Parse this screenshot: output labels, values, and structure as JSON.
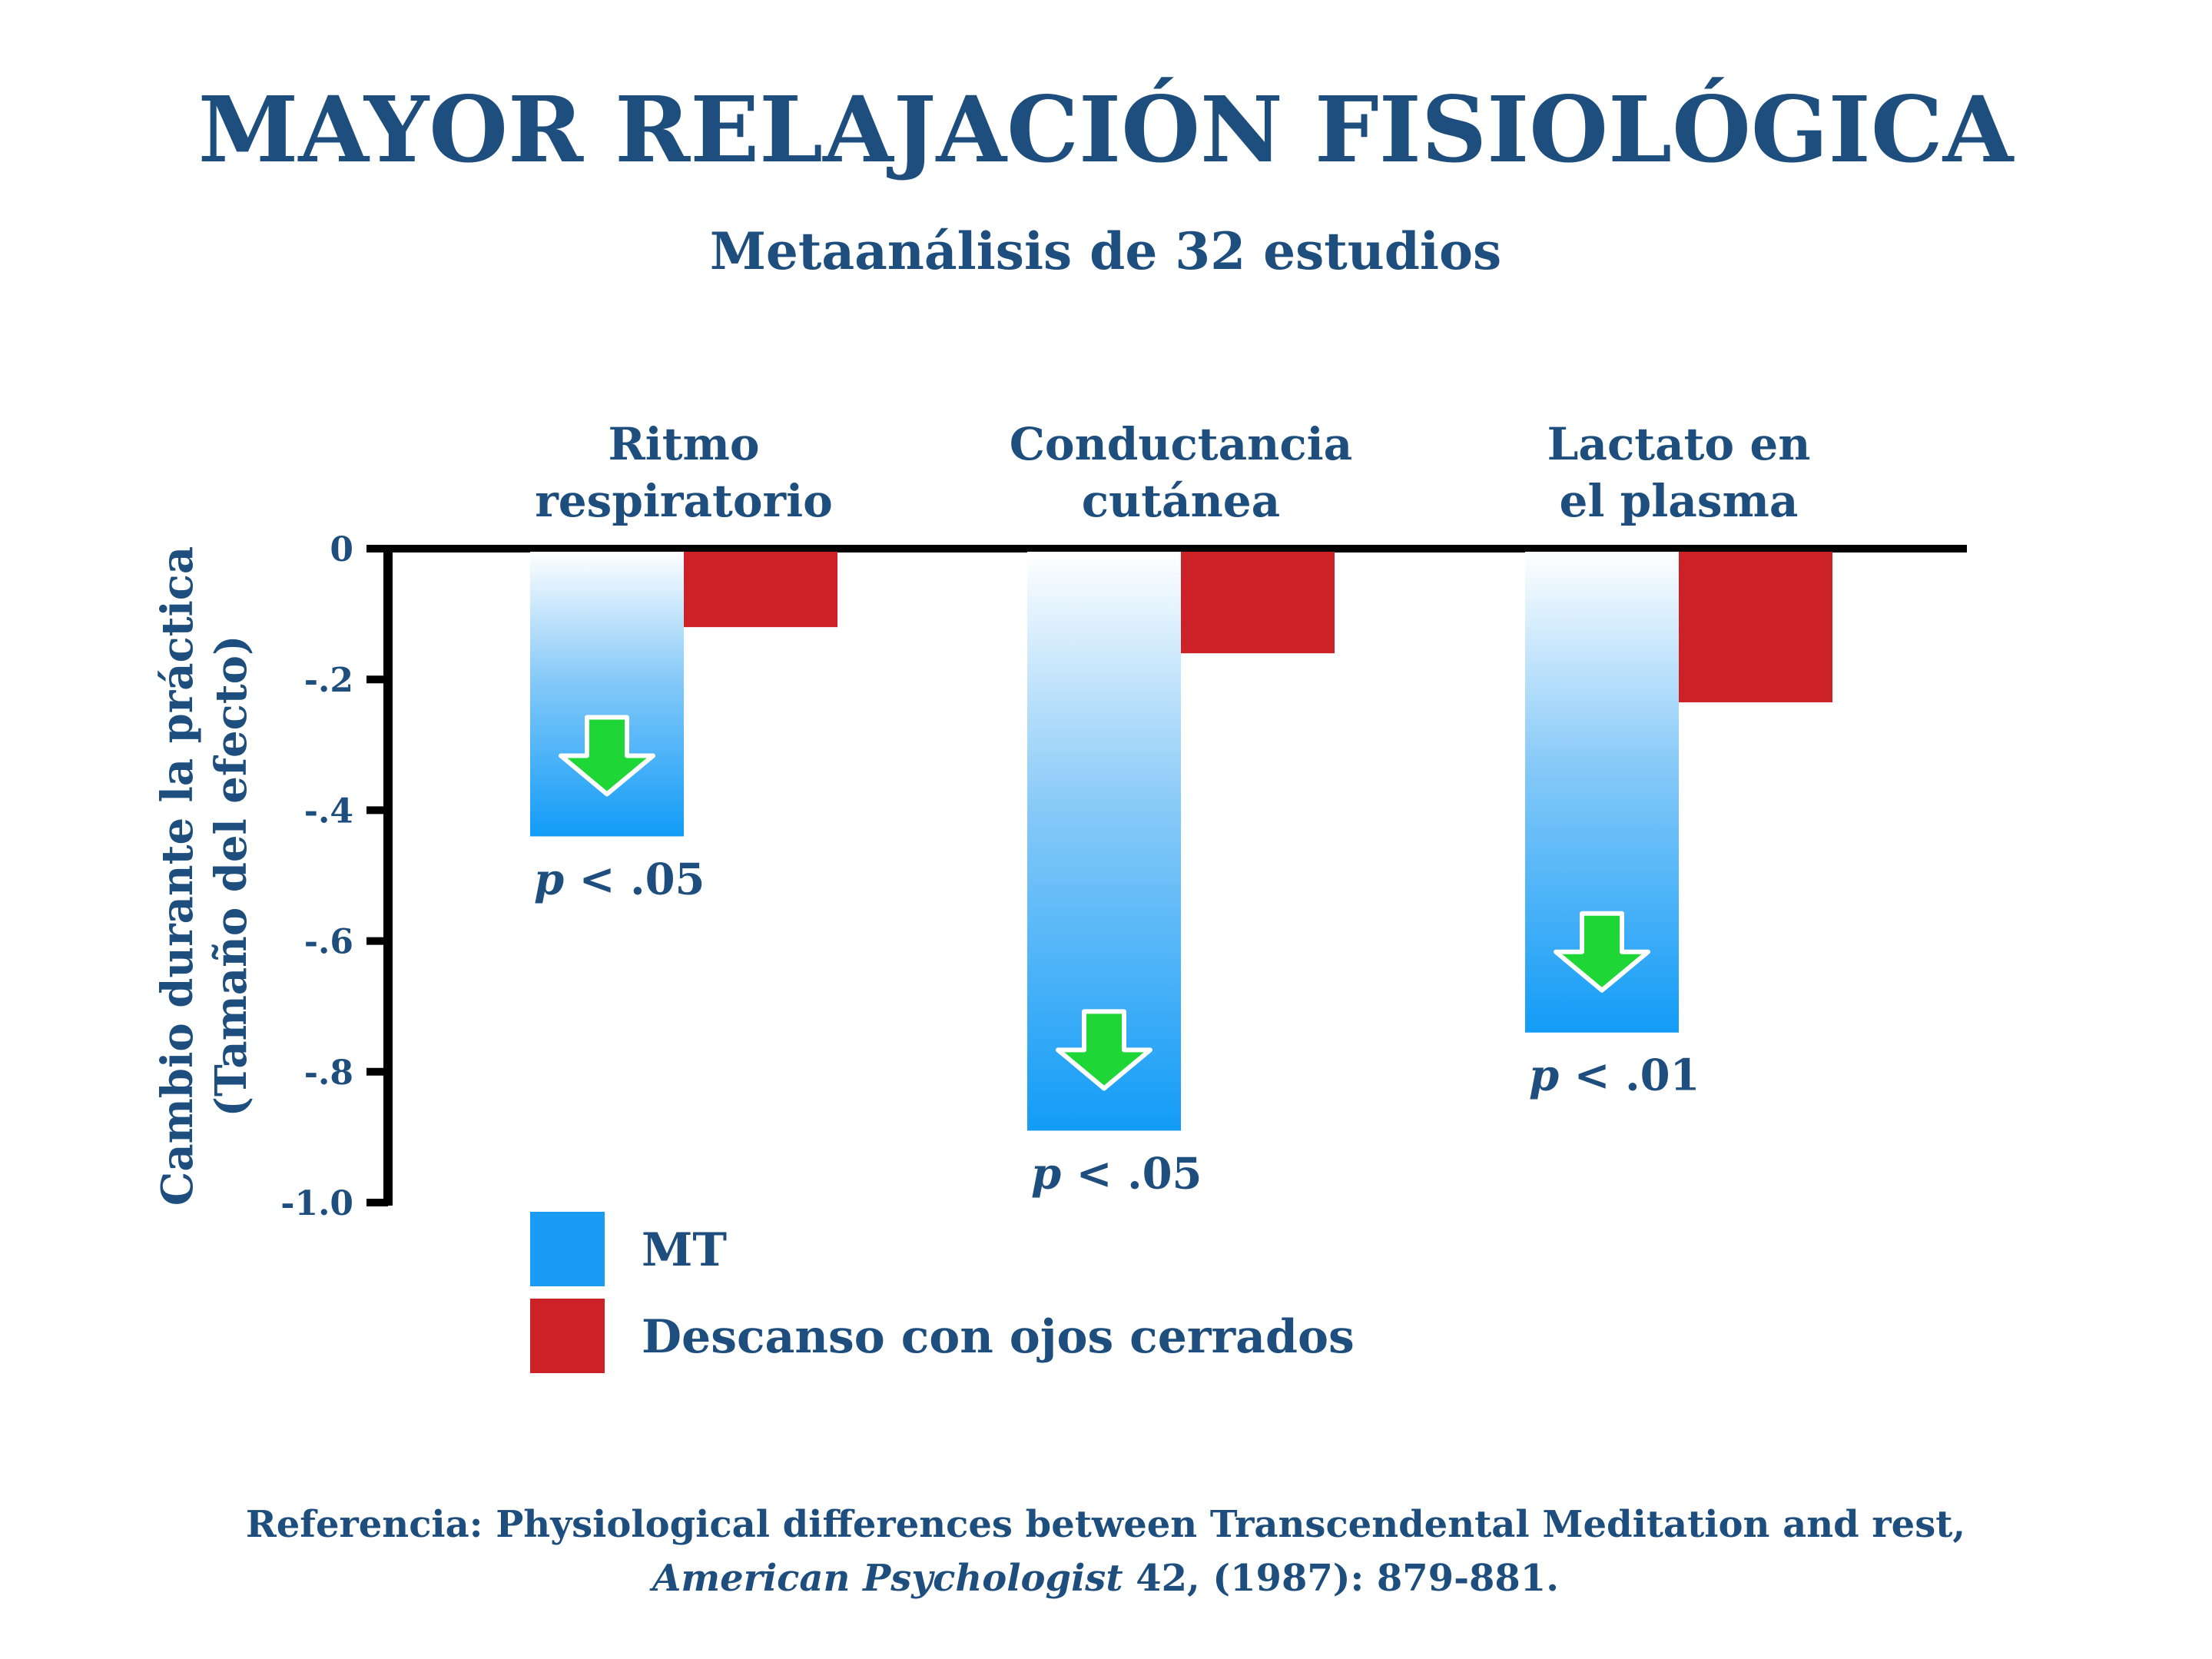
{
  "chart_data": {
    "type": "bar",
    "title": "MAYOR RELAJACIÓN FISIOLÓGICA",
    "subtitle": "Metaanálisis de 32 estudios",
    "ylabel": [
      "Cambio durante la práctica",
      "(Tamaño del efecto)"
    ],
    "ylim": [
      -1.0,
      0
    ],
    "yticks": [
      "0",
      "-.2",
      "-.4",
      "-.6",
      "-.8",
      "-1.0"
    ],
    "ytick_values": [
      0,
      -0.2,
      -0.4,
      -0.6,
      -0.8,
      -1.0
    ],
    "categories": [
      [
        "Ritmo",
        "respiratorio"
      ],
      [
        "Conductancia",
        "cutánea"
      ],
      [
        "Lactato en",
        "el plasma"
      ]
    ],
    "series": [
      {
        "name": "MT",
        "values": [
          -0.44,
          -0.89,
          -0.74
        ],
        "color": "#1a9bf4"
      },
      {
        "name": "Descanso con ojos cerrados",
        "values": [
          -0.12,
          -0.16,
          -0.235
        ],
        "color": "#cc2127"
      }
    ],
    "annotations": [
      "p < .05",
      "p < .05",
      "p < .01"
    ],
    "legend_position": "bottom-left",
    "arrow_icon": "down-arrow-icon",
    "arrow_color": "#1fd637",
    "grid": false
  },
  "reference": {
    "line1": "Referencia: Physiological differences between Transcendental Meditation and rest,",
    "journal": "American Psychologist",
    "line2_rest": " 42, (1987): 879-881."
  }
}
